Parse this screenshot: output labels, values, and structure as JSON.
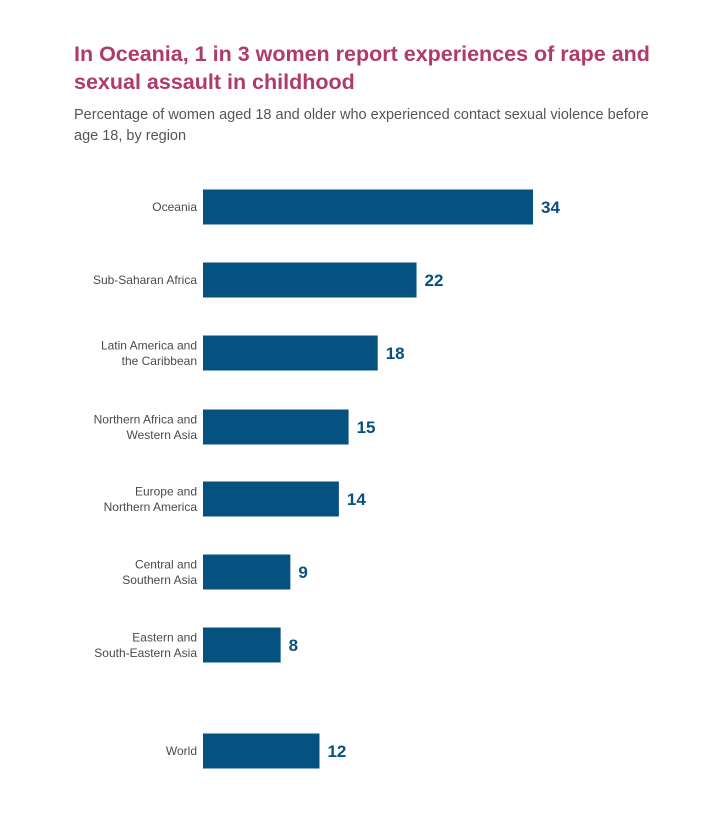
{
  "colors": {
    "title": "#b03a6b",
    "bar": "#05517f",
    "value_text": "#05517f",
    "category_text": "#4a4a4a",
    "subtitle_text": "#555555"
  },
  "chart_data": {
    "type": "bar",
    "orientation": "horizontal",
    "title": "In Oceania, 1 in 3 women report experiences of rape and sexual assault in childhood",
    "subtitle": "Percentage of women aged 18 and older who experienced contact sexual violence before age 18, by region",
    "xlabel": "",
    "ylabel": "",
    "xlim": [
      0,
      34
    ],
    "grid": false,
    "legend": "none",
    "categories": [
      [
        "Oceania"
      ],
      [
        "Sub-Saharan Africa"
      ],
      [
        "Latin America and",
        "the Caribbean"
      ],
      [
        "Northern Africa and",
        "Western Asia"
      ],
      [
        "Europe and",
        "Northern America"
      ],
      [
        "Central and",
        "Southern Asia"
      ],
      [
        "Eastern and",
        "South-Eastern Asia"
      ],
      [
        "World"
      ]
    ],
    "values": [
      34,
      22,
      18,
      15,
      14,
      9,
      8,
      12
    ],
    "data_labels": [
      "34",
      "22",
      "18",
      "15",
      "14",
      "9",
      "8",
      "12"
    ]
  }
}
